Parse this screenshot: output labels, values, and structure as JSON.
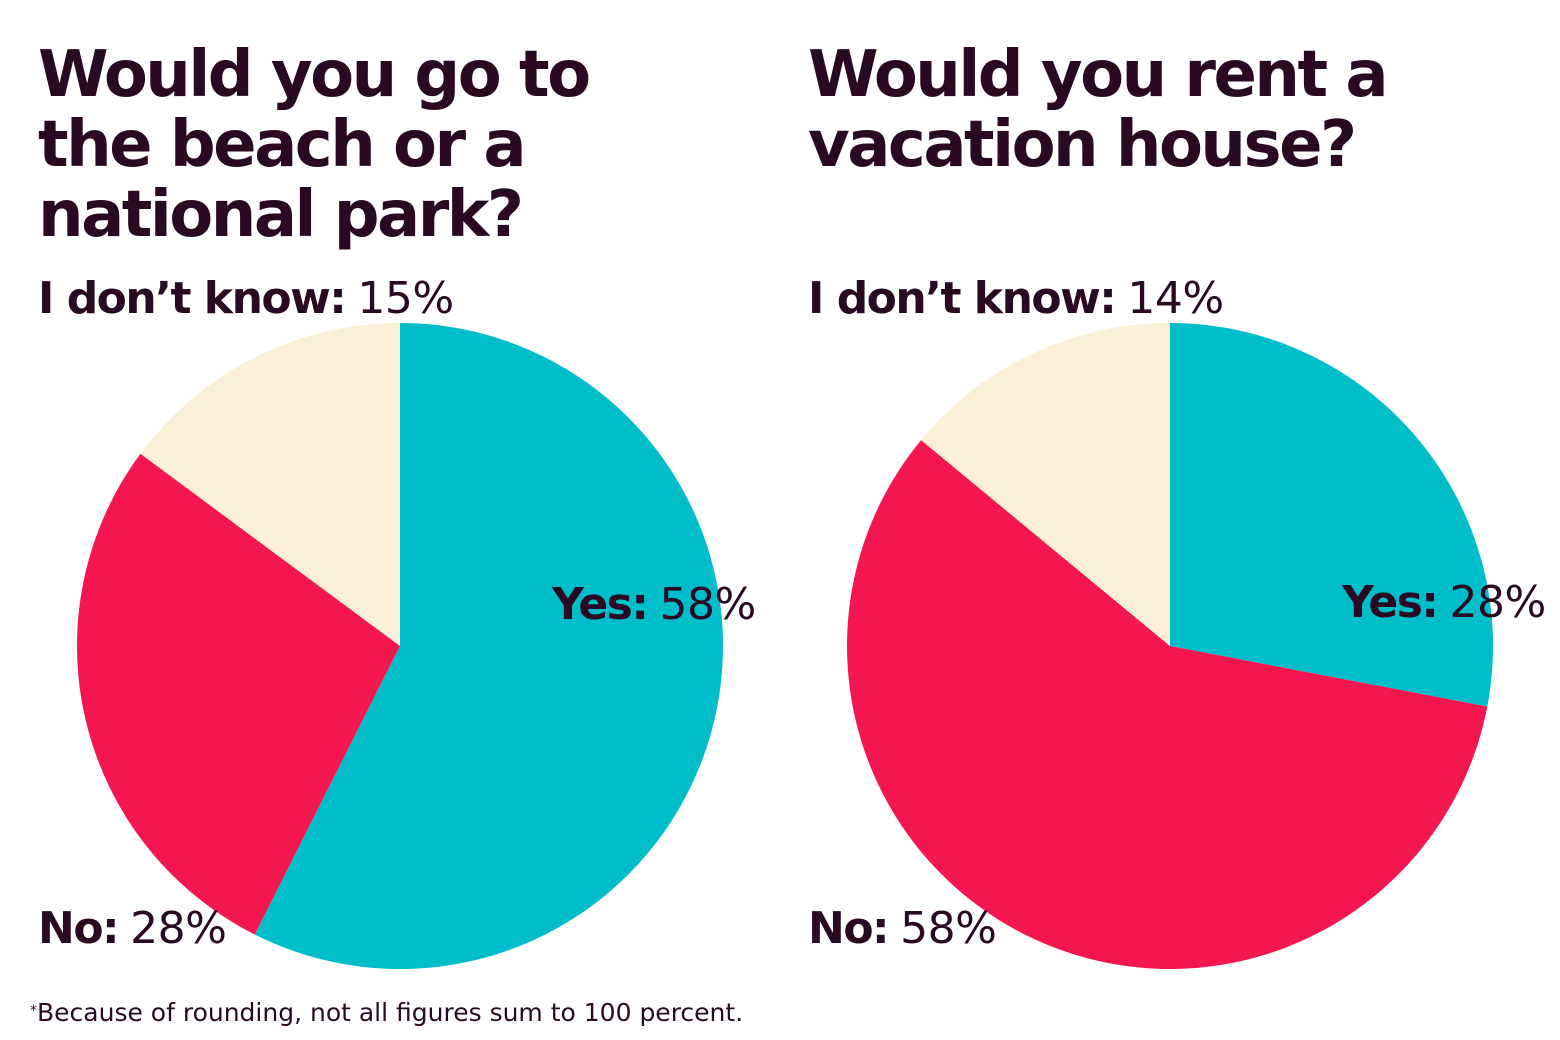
{
  "chart_data": [
    {
      "type": "pie",
      "title": "Would you go to the beach or a national park?",
      "slices": [
        {
          "label": "Yes:",
          "value_label": "58%",
          "value": 58,
          "color": "#00bec9"
        },
        {
          "label": "No:",
          "value_label": "28%",
          "value": 28,
          "color": "#f4164f"
        },
        {
          "label": "I don’t know:",
          "value_label": "15%",
          "value": 15,
          "color": "#fcefd7"
        }
      ]
    },
    {
      "type": "pie",
      "title": "Would you rent a vacation house?",
      "slices": [
        {
          "label": "Yes:",
          "value_label": "28%",
          "value": 28,
          "color": "#00bec9"
        },
        {
          "label": "No:",
          "value_label": "58%",
          "value": 58,
          "color": "#f4164f"
        },
        {
          "label": "I don’t know:",
          "value_label": "14%",
          "value": 14,
          "color": "#fcefd7"
        }
      ]
    }
  ],
  "footnote": {
    "marker": "*",
    "text": "Because of rounding, not all figures sum to 100 percent."
  },
  "colors": {
    "text": "#2a0a22",
    "background": "#ffffff"
  }
}
